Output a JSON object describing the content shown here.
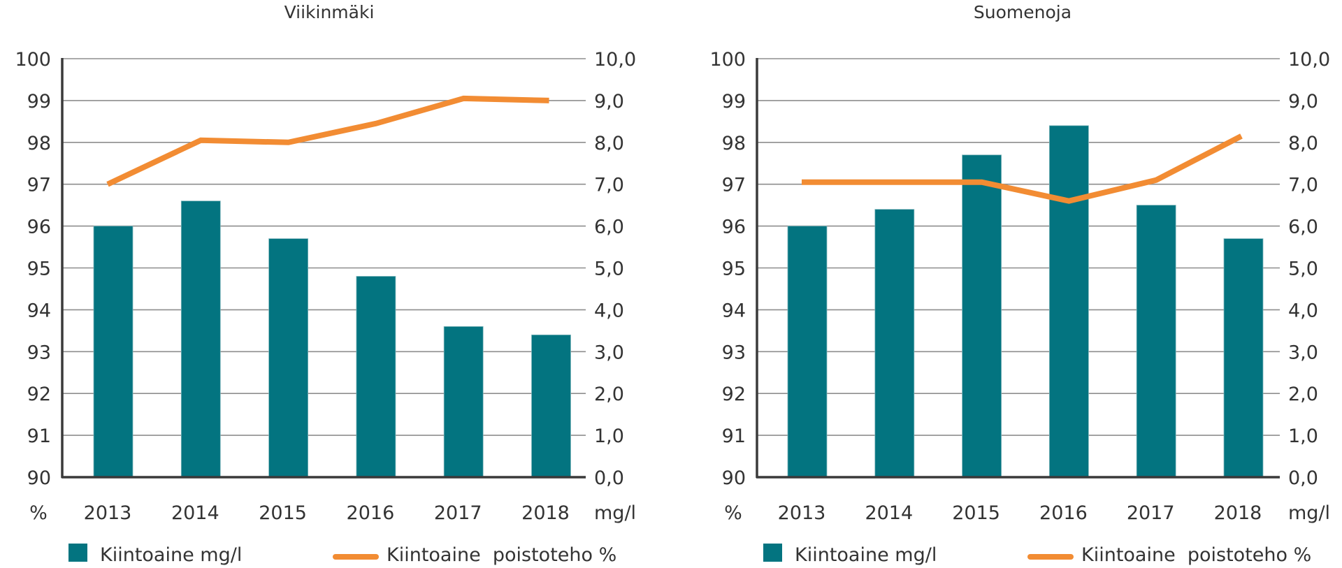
{
  "colors": {
    "bar": "#037480",
    "line": "#F28C33"
  },
  "chart_data": [
    {
      "type": "bar+line",
      "title": "Viikinmäki",
      "categories": [
        "2013",
        "2014",
        "2015",
        "2016",
        "2017",
        "2018"
      ],
      "left_axis": {
        "label": "%",
        "ylim": [
          90,
          100
        ],
        "ticks": [
          "90",
          "91",
          "92",
          "93",
          "94",
          "95",
          "96",
          "97",
          "98",
          "99",
          "100"
        ]
      },
      "right_axis": {
        "label": "mg/l",
        "ylim": [
          0,
          10
        ],
        "ticks": [
          "0,0",
          "1,0",
          "2,0",
          "3,0",
          "4,0",
          "5,0",
          "6,0",
          "7,0",
          "8,0",
          "9,0",
          "10,0"
        ]
      },
      "grid": true,
      "legend": "bottom",
      "series": [
        {
          "name": "Kiintoaine mg/l",
          "type": "bar",
          "axis": "right",
          "values": [
            6.0,
            6.6,
            5.7,
            4.8,
            3.6,
            3.4
          ]
        },
        {
          "name": "Kiintoaine  poistoteho %",
          "type": "line",
          "axis": "left",
          "values": [
            97.0,
            98.05,
            98.0,
            98.45,
            99.05,
            99.0
          ]
        }
      ]
    },
    {
      "type": "bar+line",
      "title": "Suomenoja",
      "categories": [
        "2013",
        "2014",
        "2015",
        "2016",
        "2017",
        "2018"
      ],
      "left_axis": {
        "label": "%",
        "ylim": [
          90,
          100
        ],
        "ticks": [
          "90",
          "91",
          "92",
          "93",
          "94",
          "95",
          "96",
          "97",
          "98",
          "99",
          "100"
        ]
      },
      "right_axis": {
        "label": "mg/l",
        "ylim": [
          0,
          10
        ],
        "ticks": [
          "0,0",
          "1,0",
          "2,0",
          "3,0",
          "4,0",
          "5,0",
          "6,0",
          "7,0",
          "8,0",
          "9,0",
          "10,0"
        ]
      },
      "grid": true,
      "legend": "bottom",
      "series": [
        {
          "name": "Kiintoaine mg/l",
          "type": "bar",
          "axis": "right",
          "values": [
            6.0,
            6.4,
            7.7,
            8.4,
            6.5,
            5.7
          ]
        },
        {
          "name": "Kiintoaine  poistoteho %",
          "type": "line",
          "axis": "left",
          "values": [
            97.05,
            97.05,
            97.05,
            96.6,
            97.1,
            98.15
          ]
        }
      ]
    }
  ]
}
